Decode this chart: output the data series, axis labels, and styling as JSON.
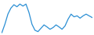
{
  "x": [
    0,
    1,
    2,
    3,
    4,
    5,
    6,
    7,
    8,
    9,
    10,
    11,
    12,
    13,
    14,
    15,
    16,
    17,
    18,
    19,
    20,
    21,
    22,
    23,
    24,
    25,
    26,
    27,
    28,
    29,
    30
  ],
  "y": [
    5,
    30,
    60,
    78,
    88,
    82,
    90,
    84,
    90,
    65,
    30,
    12,
    8,
    18,
    28,
    22,
    15,
    20,
    28,
    22,
    15,
    25,
    45,
    60,
    52,
    55,
    48,
    55,
    60,
    55,
    50
  ],
  "line_color": "#2b8fd4",
  "linewidth": 0.9,
  "background_color": "#ffffff",
  "ylim": [
    0,
    100
  ],
  "xlim": [
    0,
    30
  ]
}
